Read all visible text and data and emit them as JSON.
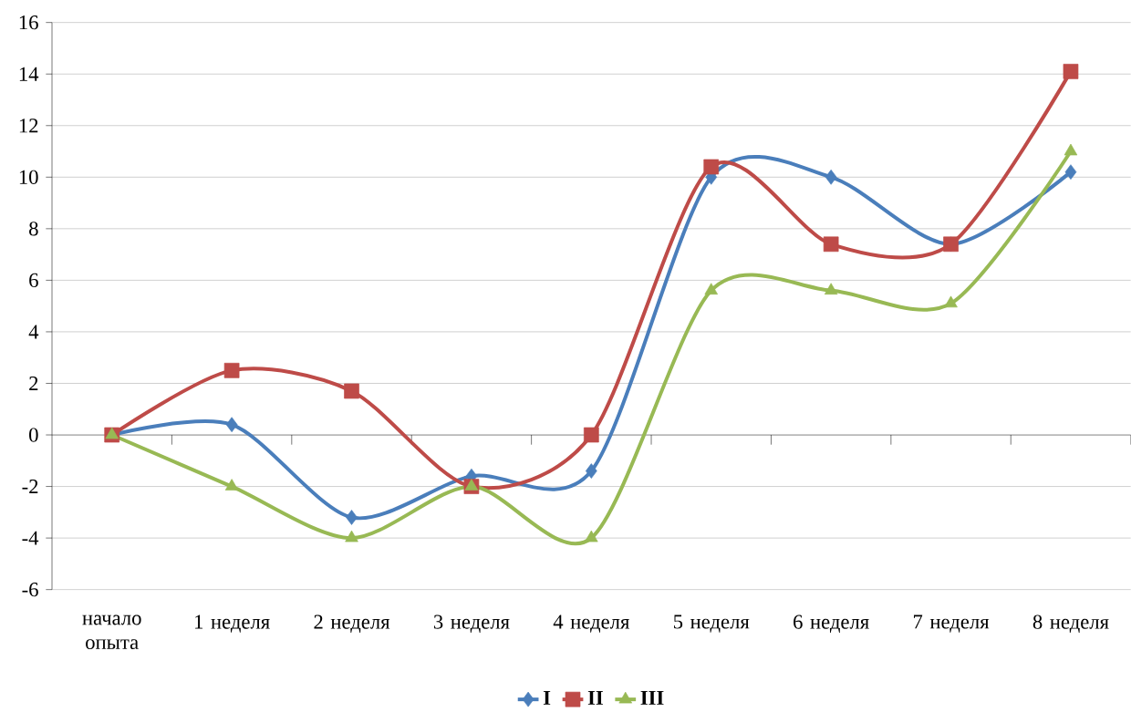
{
  "chart_data": {
    "type": "line",
    "categories": [
      "начало опыта",
      "1 неделя",
      "2 неделя",
      "3 неделя",
      "4 неделя",
      "5 неделя",
      "6 неделя",
      "7 неделя",
      "8 неделя"
    ],
    "series": [
      {
        "name": "I",
        "color": "#4a7ebb",
        "marker": "diamond",
        "values": [
          0,
          0.4,
          -3.2,
          -1.6,
          -1.4,
          10,
          10,
          7.4,
          10.2
        ]
      },
      {
        "name": "II",
        "color": "#be4b48",
        "marker": "square",
        "values": [
          0,
          2.5,
          1.7,
          -2,
          0,
          10.4,
          7.4,
          7.4,
          14.1
        ]
      },
      {
        "name": "III",
        "color": "#98b954",
        "marker": "triangle",
        "values": [
          0,
          -2,
          -4,
          -2,
          -4,
          5.6,
          5.6,
          5.1,
          11
        ]
      }
    ],
    "ylim": [
      -6,
      16
    ],
    "yticks": [
      -6,
      -4,
      -2,
      0,
      2,
      4,
      6,
      8,
      10,
      12,
      14,
      16
    ],
    "grid": "y",
    "legend": "bottom",
    "line_style": "solid"
  }
}
